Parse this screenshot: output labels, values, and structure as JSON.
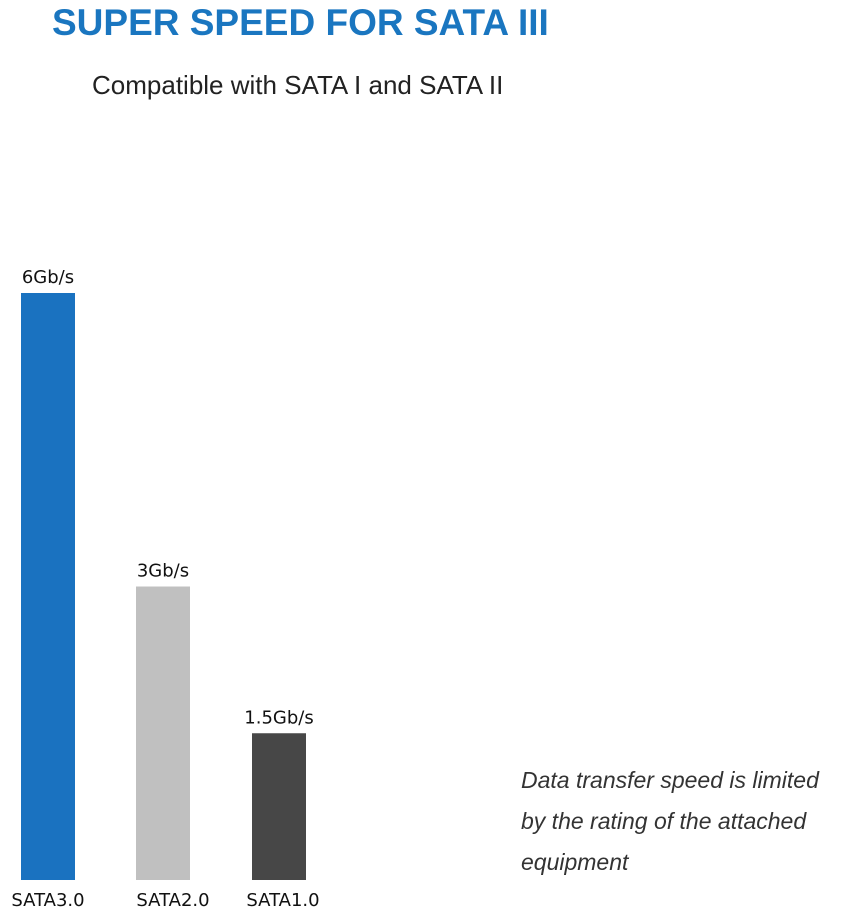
{
  "header": {
    "title": "SUPER SPEED FOR SATA III",
    "subtitle": "Compatible with SATA I and SATA II"
  },
  "chart_data": {
    "type": "bar",
    "categories": [
      "SATA3.0",
      "SATA2.0",
      "SATA1.0"
    ],
    "values": [
      6,
      3,
      1.5
    ],
    "value_labels": [
      "6Gb/s",
      "3Gb/s",
      "1.5Gb/s"
    ],
    "unit": "Gb/s",
    "bar_colors": [
      "#1a72c0",
      "#c0c0c0",
      "#474747"
    ],
    "title": "SUPER SPEED FOR SATA III",
    "xlabel": "",
    "ylabel": "",
    "ylim": [
      0,
      6
    ],
    "grid": false,
    "legend": "none"
  },
  "note": {
    "text": "Data transfer speed is limited by the rating of the attached equipment"
  },
  "colors": {
    "title": "#1a76c0",
    "subtitle": "#222222",
    "note": "#333333",
    "label": "#111111"
  }
}
